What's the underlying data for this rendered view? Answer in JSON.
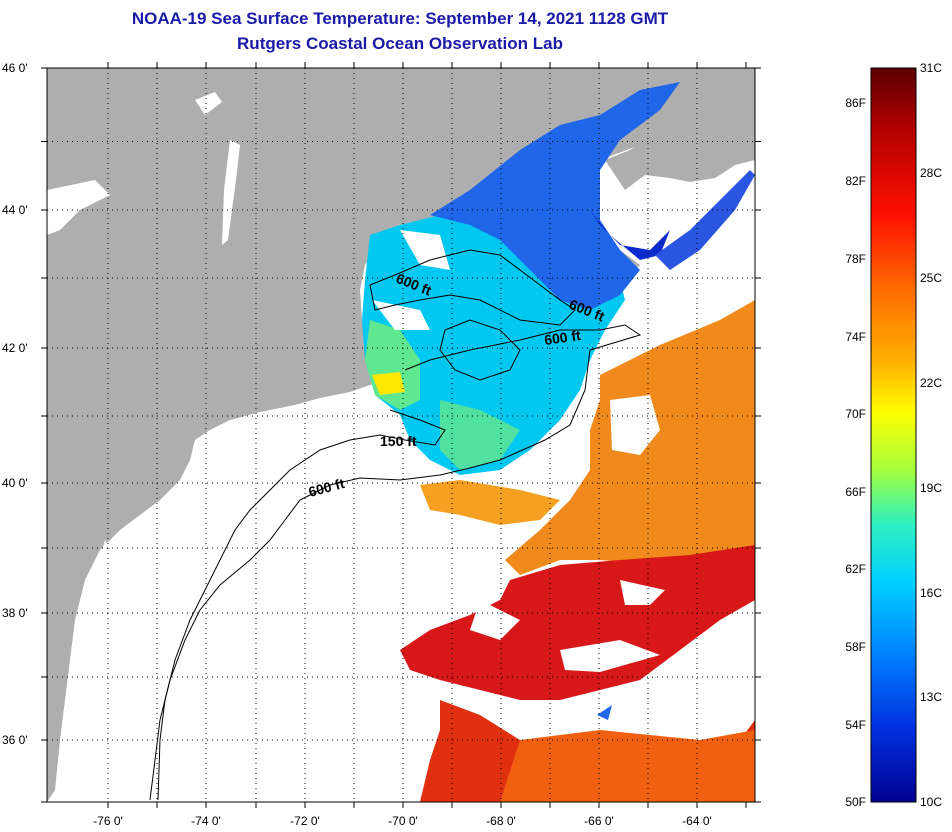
{
  "title": "NOAA-19 Sea Surface Temperature:  September 14, 2021 1128 GMT",
  "subtitle": "Rutgers Coastal Ocean Observation Lab",
  "lat_labels": [
    "46 0'",
    "44 0'",
    "42 0'",
    "40 0'",
    "38 0'",
    "36 0'"
  ],
  "lon_labels": [
    "-76 0'",
    "-74 0'",
    "-72 0'",
    "-70 0'",
    "-68 0'",
    "-66 0'",
    "-64 0'"
  ],
  "contour_labels": [
    "600 ft",
    "600 ft",
    "600 ft",
    "150 ft",
    "600 ft"
  ],
  "colorbar": {
    "fahrenheit_labels": [
      "86F",
      "82F",
      "78F",
      "74F",
      "70F",
      "66F",
      "62F",
      "58F",
      "54F",
      "50F"
    ],
    "celsius_labels": [
      "31C",
      "28C",
      "25C",
      "22C",
      "19C",
      "16C",
      "13C",
      "10C"
    ],
    "colors": [
      "#5a0000",
      "#b00000",
      "#ff0000",
      "#ff6a00",
      "#ffb000",
      "#ffff00",
      "#a0ff40",
      "#30f0c0",
      "#00d0ff",
      "#0080ff",
      "#0030e0",
      "#000090"
    ]
  },
  "colors": {
    "title": "#1a1aa8",
    "land": "#aeaeae",
    "no_data": "#ffffff",
    "cool_water": "#1f66e8",
    "warm_water": "#f07a18",
    "hot_water": "#d81818"
  }
}
